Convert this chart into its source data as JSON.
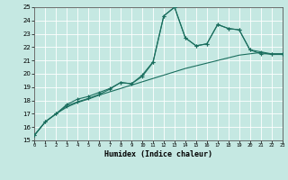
{
  "xlabel": "Humidex (Indice chaleur)",
  "xlim": [
    0,
    23
  ],
  "ylim": [
    15,
    25
  ],
  "yticks": [
    15,
    16,
    17,
    18,
    19,
    20,
    21,
    22,
    23,
    24,
    25
  ],
  "xticks": [
    0,
    1,
    2,
    3,
    4,
    5,
    6,
    7,
    8,
    9,
    10,
    11,
    12,
    13,
    14,
    15,
    16,
    17,
    18,
    19,
    20,
    21,
    22,
    23
  ],
  "bg_color": "#c5e8e2",
  "grid_color": "#ffffff",
  "line_color": "#1a6e5e",
  "line1_x": [
    0,
    1,
    2,
    3,
    4,
    5,
    6,
    7,
    8,
    9,
    10,
    11,
    12,
    13,
    14,
    15,
    16,
    17,
    18,
    19,
    20,
    21,
    22,
    23
  ],
  "line1_y": [
    15.4,
    16.4,
    17.0,
    17.5,
    17.85,
    18.1,
    18.4,
    18.65,
    18.9,
    19.15,
    19.4,
    19.65,
    19.9,
    20.15,
    20.4,
    20.6,
    20.8,
    21.0,
    21.2,
    21.4,
    21.5,
    21.6,
    21.45,
    21.45
  ],
  "line2_x": [
    0,
    1,
    2,
    3,
    4,
    5,
    6,
    7,
    8,
    9,
    10,
    11,
    12,
    13,
    14,
    15,
    16,
    17,
    18,
    19,
    20,
    21,
    22,
    23
  ],
  "line2_y": [
    15.4,
    16.4,
    17.0,
    17.7,
    18.1,
    18.3,
    18.6,
    18.9,
    19.35,
    19.25,
    19.9,
    20.9,
    24.35,
    25.0,
    22.7,
    22.1,
    22.25,
    23.7,
    23.4,
    23.3,
    21.8,
    21.5,
    21.5,
    21.5
  ],
  "line3_x": [
    0,
    1,
    2,
    3,
    4,
    5,
    6,
    7,
    8,
    9,
    10,
    11,
    12,
    13,
    14,
    15,
    16,
    17,
    18,
    19,
    20,
    21,
    22,
    23
  ],
  "line3_y": [
    15.4,
    16.4,
    17.0,
    17.6,
    17.9,
    18.15,
    18.45,
    18.85,
    19.35,
    19.25,
    19.8,
    20.85,
    24.35,
    25.0,
    22.7,
    22.1,
    22.25,
    23.7,
    23.4,
    23.3,
    21.8,
    21.65,
    21.5,
    21.5
  ]
}
